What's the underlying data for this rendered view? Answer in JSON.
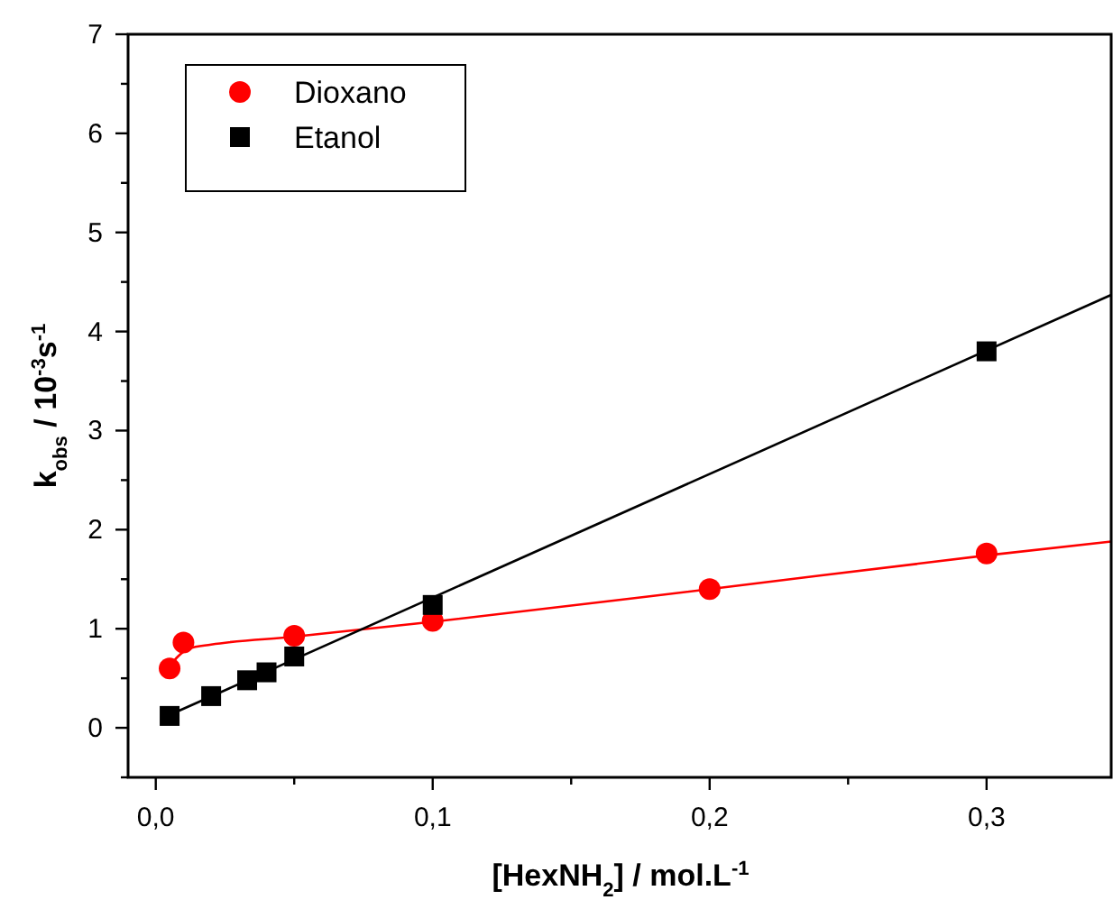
{
  "chart_data": {
    "type": "scatter",
    "xlabel": "[HexNH$_{2}$] / mol.L$^{-1}$",
    "ylabel": "k$_{obs}$ / 10$^{-3}$s$^{-1}$",
    "xlim": [
      -0.01,
      0.345
    ],
    "ylim": [
      -0.5,
      7
    ],
    "xticks": [
      {
        "value": 0,
        "label": "0,0"
      },
      {
        "value": 0.05,
        "label": null
      },
      {
        "value": 0.1,
        "label": "0,1"
      },
      {
        "value": 0.15,
        "label": null
      },
      {
        "value": 0.2,
        "label": "0,2"
      },
      {
        "value": 0.25,
        "label": null
      },
      {
        "value": 0.3,
        "label": "0,3"
      }
    ],
    "yticks": [
      {
        "value": -0.5,
        "label": null
      },
      0,
      {
        "value": 0.5,
        "label": null
      },
      1,
      {
        "value": 1.5,
        "label": null
      },
      2,
      {
        "value": 2.5,
        "label": null
      },
      3,
      {
        "value": 3.5,
        "label": null
      },
      4,
      {
        "value": 4.5,
        "label": null
      },
      5,
      {
        "value": 5.5,
        "label": null
      },
      6,
      {
        "value": 6.5,
        "label": null
      },
      7
    ],
    "legend": "top left",
    "grid": false,
    "series": [
      {
        "name": "Dioxano",
        "marker": "circle",
        "color": "#ff0000",
        "x": [
          0.005,
          0.01,
          0.05,
          0.1,
          0.2,
          0.3
        ],
        "values": [
          0.6,
          0.86,
          0.93,
          1.08,
          1.4,
          1.76
        ]
      },
      {
        "name": "Etanol",
        "marker": "square",
        "color": "#000000",
        "x": [
          0.005,
          0.02,
          0.033,
          0.04,
          0.05,
          0.1,
          0.3
        ],
        "values": [
          0.12,
          0.32,
          0.48,
          0.56,
          0.72,
          1.24,
          3.8
        ]
      },
      {
        "type": "line",
        "marker": "none",
        "color": "#ff0000",
        "x": [
          0.005,
          0.008,
          0.012,
          0.02,
          0.05,
          0.1,
          0.2,
          0.3,
          0.345
        ],
        "values": [
          0.62,
          0.72,
          0.8,
          0.84,
          0.92,
          1.07,
          1.4,
          1.74,
          1.88
        ]
      },
      {
        "type": "line",
        "marker": "none",
        "color": "#000000",
        "x": [
          0.005,
          0.345
        ],
        "values": [
          0.13,
          4.37
        ]
      }
    ]
  }
}
